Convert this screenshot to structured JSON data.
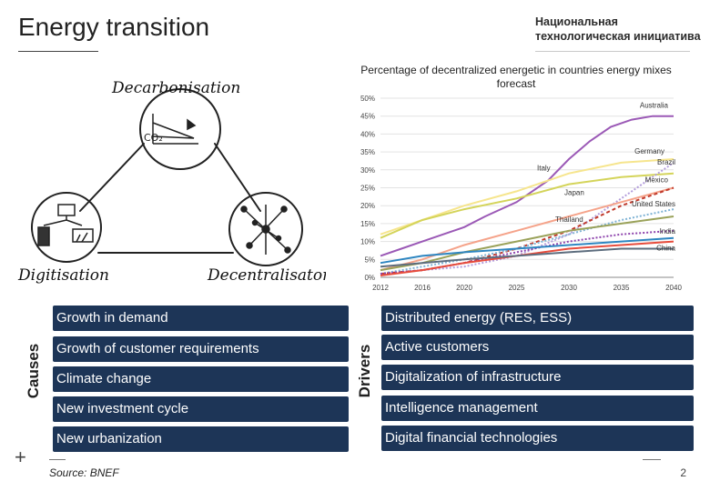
{
  "header": {
    "title": "Energy transition",
    "logo_line1": "Национальная",
    "logo_line2": "технологическая инициатива"
  },
  "sketch": {
    "label_top": "Decarbonisation",
    "label_left": "Digitisation",
    "label_right": "Decentralisaton",
    "co2_label": "CO₂"
  },
  "chart_data": {
    "type": "line",
    "title": "Percentage of decentralized energetic in countries energy mixes forecast",
    "xlabel": "",
    "ylabel": "",
    "x_ticks": [
      "2012",
      "2016",
      "2020",
      "2025",
      "2030",
      "2035",
      "2040"
    ],
    "y_ticks": [
      "0%",
      "5%",
      "10%",
      "15%",
      "20%",
      "25%",
      "30%",
      "35%",
      "40%",
      "45%",
      "50%"
    ],
    "xlim": [
      2012,
      2040
    ],
    "ylim": [
      0,
      50
    ],
    "series": [
      {
        "name": "Australia",
        "color": "#9b59b6",
        "x": [
          2012,
          2014,
          2016,
          2018,
          2020,
          2022,
          2025,
          2028,
          2030,
          2032,
          2034,
          2036,
          2038,
          2040
        ],
        "y": [
          6,
          8,
          10,
          12,
          14,
          17,
          21,
          27,
          33,
          38,
          42,
          44,
          45,
          45
        ]
      },
      {
        "name": "Germany",
        "color": "#f6e58d",
        "x": [
          2012,
          2016,
          2020,
          2025,
          2030,
          2035,
          2040
        ],
        "y": [
          12,
          16,
          20,
          24,
          29,
          32,
          33
        ]
      },
      {
        "name": "Italy",
        "color": "#d4d45a",
        "x": [
          2012,
          2016,
          2020,
          2025,
          2030,
          2035,
          2040
        ],
        "y": [
          11,
          16,
          19,
          22,
          26,
          28,
          29
        ]
      },
      {
        "name": "Brazil",
        "color": "#b39ddb",
        "dash": "2,2",
        "x": [
          2012,
          2016,
          2020,
          2025,
          2030,
          2035,
          2040
        ],
        "y": [
          1,
          2,
          3,
          6,
          12,
          22,
          32
        ]
      },
      {
        "name": "Japan",
        "color": "#f5a38a",
        "x": [
          2012,
          2016,
          2020,
          2025,
          2030,
          2035,
          2040
        ],
        "y": [
          2,
          5,
          9,
          13,
          17,
          21,
          25
        ]
      },
      {
        "name": "Mexico",
        "color": "#c0392b",
        "dash": "4,3",
        "x": [
          2012,
          2016,
          2020,
          2025,
          2030,
          2035,
          2040
        ],
        "y": [
          1,
          2,
          4,
          8,
          13,
          20,
          25
        ]
      },
      {
        "name": "United States",
        "color": "#7fb3d5",
        "dash": "2,2",
        "x": [
          2012,
          2016,
          2020,
          2025,
          2030,
          2035,
          2040
        ],
        "y": [
          1,
          3,
          5,
          8,
          12,
          16,
          19
        ]
      },
      {
        "name": "Thailand",
        "color": "#9aa25a",
        "x": [
          2012,
          2016,
          2020,
          2025,
          2030,
          2035,
          2040
        ],
        "y": [
          2,
          4,
          7,
          10,
          13,
          15,
          17
        ]
      },
      {
        "name": "India",
        "color": "#8e44ad",
        "dash": "2,2",
        "x": [
          2012,
          2016,
          2020,
          2025,
          2030,
          2035,
          2040
        ],
        "y": [
          1,
          2,
          4,
          7,
          10,
          12,
          13
        ]
      },
      {
        "name": "China",
        "color": "#e74c3c",
        "x": [
          2012,
          2016,
          2020,
          2025,
          2030,
          2035,
          2040
        ],
        "y": [
          0.5,
          2,
          4,
          6,
          8,
          9,
          10
        ]
      },
      {
        "name": "",
        "color": "#2e86c1",
        "x": [
          2012,
          2016,
          2020,
          2025,
          2030,
          2035,
          2040
        ],
        "y": [
          4,
          6,
          7,
          8,
          9,
          10,
          11
        ]
      },
      {
        "name": "",
        "color": "#5d6d7e",
        "x": [
          2012,
          2016,
          2020,
          2025,
          2030,
          2035,
          2040
        ],
        "y": [
          3,
          4,
          5,
          6,
          7,
          8,
          8
        ]
      }
    ]
  },
  "causes": {
    "label": "Causes",
    "items": [
      "Growth in demand",
      "Growth of customer requirements",
      "Climate change",
      "New investment cycle",
      "New urbanization"
    ]
  },
  "drivers": {
    "label": "Drivers",
    "items": [
      "Distributed energy (RES, ESS)",
      "Active customers",
      "Digitalization of infrastructure",
      "Intelligence management",
      "Digital financial technologies"
    ]
  },
  "footer": {
    "source": "Source: BNEF",
    "page": "2"
  }
}
